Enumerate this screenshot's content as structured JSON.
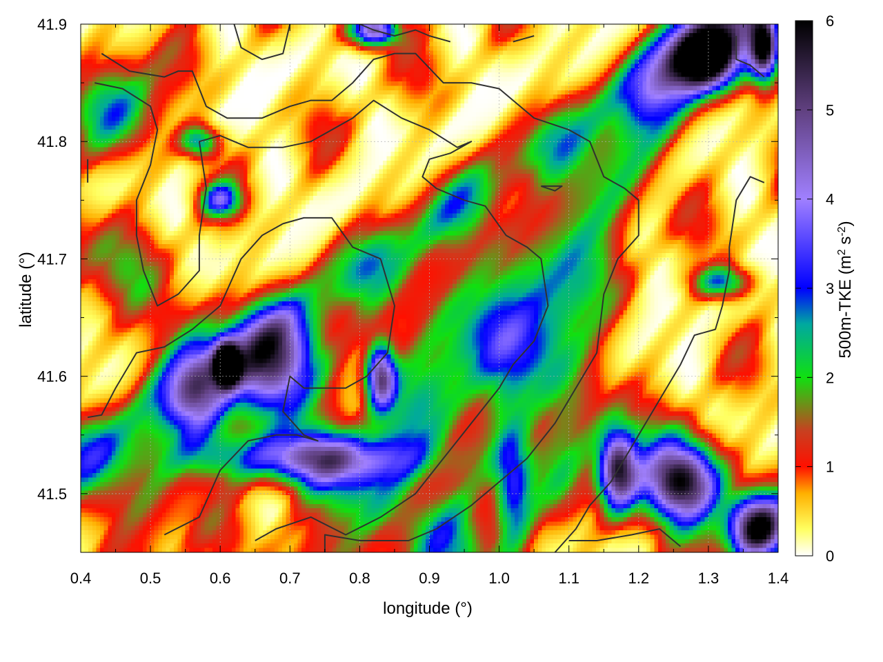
{
  "chart_data": {
    "type": "heatmap",
    "title": "",
    "xlabel": "longitude (°)",
    "ylabel": "latitude (°)",
    "xlim": [
      0.4,
      1.4
    ],
    "ylim": [
      41.45,
      41.9
    ],
    "x_ticks": [
      "0.4",
      "0.5",
      "0.6",
      "0.7",
      "0.8",
      "0.9",
      "1.0",
      "1.1",
      "1.2",
      "1.3",
      "1.4"
    ],
    "y_ticks": [
      "41.5",
      "41.6",
      "41.7",
      "41.8",
      "41.9"
    ],
    "grid": true,
    "colorbar": {
      "label_parts": [
        "500m-TKE (m",
        "2",
        " s",
        "-2",
        ")"
      ],
      "range": [
        0,
        6
      ],
      "ticks": [
        "0",
        "1",
        "2",
        "3",
        "4",
        "5",
        "6"
      ],
      "stops": [
        {
          "value": 0.0,
          "color": "#ffffff"
        },
        {
          "value": 0.3,
          "color": "#ffff60"
        },
        {
          "value": 0.7,
          "color": "#ffb000"
        },
        {
          "value": 1.0,
          "color": "#ff1000"
        },
        {
          "value": 1.4,
          "color": "#c84020"
        },
        {
          "value": 2.0,
          "color": "#10e010"
        },
        {
          "value": 2.6,
          "color": "#00a8a0"
        },
        {
          "value": 3.0,
          "color": "#0000ff"
        },
        {
          "value": 4.0,
          "color": "#a080ff"
        },
        {
          "value": 5.0,
          "color": "#604080"
        },
        {
          "value": 6.0,
          "color": "#000000"
        }
      ]
    },
    "hotspots": [
      {
        "lon": 0.68,
        "lat": 41.61,
        "amp": 3.8,
        "sx": 0.05,
        "sy": 0.03
      },
      {
        "lon": 0.61,
        "lat": 41.61,
        "amp": 5.5,
        "sx": 0.012,
        "sy": 0.012
      },
      {
        "lon": 0.83,
        "lat": 41.6,
        "amp": 4.2,
        "sx": 0.015,
        "sy": 0.02
      },
      {
        "lon": 0.72,
        "lat": 41.53,
        "amp": 3.0,
        "sx": 0.12,
        "sy": 0.015
      },
      {
        "lon": 0.57,
        "lat": 41.58,
        "amp": 2.6,
        "sx": 0.03,
        "sy": 0.03
      },
      {
        "lon": 1.02,
        "lat": 41.5,
        "amp": 2.8,
        "sx": 0.02,
        "sy": 0.04
      },
      {
        "lon": 1.26,
        "lat": 41.51,
        "amp": 6.0,
        "sx": 0.04,
        "sy": 0.025
      },
      {
        "lon": 1.17,
        "lat": 41.52,
        "amp": 5.0,
        "sx": 0.02,
        "sy": 0.025
      },
      {
        "lon": 1.37,
        "lat": 41.47,
        "amp": 6.0,
        "sx": 0.03,
        "sy": 0.02
      },
      {
        "lon": 1.3,
        "lat": 41.87,
        "amp": 5.5,
        "sx": 0.035,
        "sy": 0.02
      },
      {
        "lon": 1.38,
        "lat": 41.88,
        "amp": 5.5,
        "sx": 0.015,
        "sy": 0.02
      },
      {
        "lon": 0.82,
        "lat": 41.895,
        "amp": 4.5,
        "sx": 0.025,
        "sy": 0.01
      },
      {
        "lon": 0.57,
        "lat": 41.8,
        "amp": 2.5,
        "sx": 0.02,
        "sy": 0.01
      },
      {
        "lon": 0.6,
        "lat": 41.75,
        "amp": 2.5,
        "sx": 0.02,
        "sy": 0.01
      },
      {
        "lon": 0.46,
        "lat": 41.83,
        "amp": 2.2,
        "sx": 0.04,
        "sy": 0.03
      },
      {
        "lon": 1.1,
        "lat": 41.58,
        "amp": 1.5,
        "sx": 0.04,
        "sy": 0.06
      },
      {
        "lon": 0.95,
        "lat": 41.65,
        "amp": 1.3,
        "sx": 0.1,
        "sy": 0.05
      },
      {
        "lon": 1.32,
        "lat": 41.68,
        "amp": 2.5,
        "sx": 0.03,
        "sy": 0.01
      },
      {
        "lon": 0.48,
        "lat": 41.5,
        "amp": 1.3,
        "sx": 0.06,
        "sy": 0.04
      }
    ],
    "bands": [
      {
        "lon0": 0.75,
        "lat0": 41.45,
        "dlon": 0.55,
        "dlat": 0.45,
        "amp": 1.2,
        "width": 0.03
      },
      {
        "lon0": 0.9,
        "lat0": 41.45,
        "dlon": 0.4,
        "dlat": 0.45,
        "amp": 1.0,
        "width": 0.025
      },
      {
        "lon0": 1.02,
        "lat0": 41.78,
        "dlon": 0.3,
        "dlat": 0.12,
        "amp": 1.4,
        "width": 0.02
      },
      {
        "lon0": 0.42,
        "lat0": 41.7,
        "dlon": 0.3,
        "dlat": -0.15,
        "amp": 1.0,
        "width": 0.03
      }
    ],
    "contours": [
      [
        [
          0.41,
          41.565
        ],
        [
          0.43,
          41.567
        ],
        [
          0.45,
          41.59
        ],
        [
          0.48,
          41.62
        ],
        [
          0.52,
          41.625
        ],
        [
          0.56,
          41.64
        ],
        [
          0.6,
          41.66
        ],
        [
          0.63,
          41.7
        ],
        [
          0.66,
          41.72
        ],
        [
          0.69,
          41.73
        ],
        [
          0.72,
          41.735
        ],
        [
          0.76,
          41.735
        ],
        [
          0.79,
          41.71
        ],
        [
          0.83,
          41.7
        ],
        [
          0.85,
          41.66
        ],
        [
          0.84,
          41.62
        ],
        [
          0.81,
          41.6
        ],
        [
          0.78,
          41.59
        ],
        [
          0.72,
          41.59
        ],
        [
          0.7,
          41.6
        ],
        [
          0.69,
          41.57
        ],
        [
          0.72,
          41.55
        ],
        [
          0.74,
          41.545
        ],
        [
          0.71,
          41.55
        ],
        [
          0.68,
          41.55
        ],
        [
          0.64,
          41.545
        ],
        [
          0.6,
          41.52
        ],
        [
          0.57,
          41.48
        ],
        [
          0.52,
          41.465
        ]
      ],
      [
        [
          0.43,
          41.875
        ],
        [
          0.47,
          41.86
        ],
        [
          0.52,
          41.855
        ],
        [
          0.54,
          41.86
        ],
        [
          0.56,
          41.86
        ],
        [
          0.58,
          41.83
        ],
        [
          0.61,
          41.82
        ],
        [
          0.66,
          41.82
        ],
        [
          0.7,
          41.83
        ],
        [
          0.73,
          41.835
        ],
        [
          0.76,
          41.835
        ],
        [
          0.79,
          41.85
        ],
        [
          0.82,
          41.87
        ],
        [
          0.85,
          41.875
        ],
        [
          0.88,
          41.875
        ],
        [
          0.92,
          41.85
        ],
        [
          0.96,
          41.85
        ],
        [
          1.0,
          41.845
        ],
        [
          1.05,
          41.82
        ],
        [
          1.1,
          41.81
        ],
        [
          1.13,
          41.8
        ],
        [
          1.15,
          41.77
        ],
        [
          1.18,
          41.76
        ],
        [
          1.2,
          41.75
        ],
        [
          1.2,
          41.72
        ],
        [
          1.17,
          41.7
        ],
        [
          1.15,
          41.67
        ],
        [
          1.14,
          41.62
        ],
        [
          1.12,
          41.6
        ],
        [
          1.08,
          41.56
        ],
        [
          1.04,
          41.53
        ],
        [
          1.0,
          41.51
        ],
        [
          0.96,
          41.49
        ],
        [
          0.91,
          41.47
        ],
        [
          0.87,
          41.46
        ],
        [
          0.8,
          41.46
        ],
        [
          0.75,
          41.465
        ],
        [
          0.75,
          41.45
        ]
      ],
      [
        [
          0.42,
          41.85
        ],
        [
          0.46,
          41.845
        ],
        [
          0.5,
          41.83
        ],
        [
          0.51,
          41.81
        ],
        [
          0.5,
          41.78
        ],
        [
          0.48,
          41.75
        ],
        [
          0.48,
          41.72
        ],
        [
          0.49,
          41.69
        ],
        [
          0.5,
          41.675
        ],
        [
          0.51,
          41.66
        ],
        [
          0.54,
          41.67
        ],
        [
          0.57,
          41.69
        ],
        [
          0.57,
          41.72
        ],
        [
          0.58,
          41.76
        ],
        [
          0.57,
          41.8
        ],
        [
          0.6,
          41.805
        ],
        [
          0.64,
          41.795
        ],
        [
          0.69,
          41.795
        ],
        [
          0.73,
          41.8
        ],
        [
          0.76,
          41.81
        ],
        [
          0.79,
          41.82
        ],
        [
          0.82,
          41.835
        ],
        [
          0.86,
          41.82
        ],
        [
          0.9,
          41.81
        ],
        [
          0.94,
          41.795
        ],
        [
          0.96,
          41.8
        ],
        [
          0.93,
          41.79
        ],
        [
          0.9,
          41.785
        ],
        [
          0.89,
          41.77
        ],
        [
          0.91,
          41.76
        ],
        [
          0.95,
          41.75
        ],
        [
          0.98,
          41.745
        ],
        [
          1.01,
          41.72
        ],
        [
          1.04,
          41.71
        ],
        [
          1.06,
          41.7
        ],
        [
          1.07,
          41.66
        ],
        [
          1.05,
          41.63
        ],
        [
          1.02,
          41.61
        ],
        [
          1.0,
          41.59
        ],
        [
          0.96,
          41.56
        ],
        [
          0.92,
          41.53
        ],
        [
          0.88,
          41.5
        ],
        [
          0.83,
          41.48
        ],
        [
          0.78,
          41.465
        ],
        [
          0.73,
          41.48
        ],
        [
          0.68,
          41.47
        ],
        [
          0.65,
          41.46
        ]
      ],
      [
        [
          0.62,
          41.9
        ],
        [
          0.63,
          41.88
        ],
        [
          0.66,
          41.87
        ],
        [
          0.69,
          41.875
        ],
        [
          0.7,
          41.9
        ]
      ],
      [
        [
          1.1,
          41.46
        ],
        [
          1.14,
          41.46
        ],
        [
          1.19,
          41.465
        ],
        [
          1.23,
          41.47
        ],
        [
          1.26,
          41.455
        ]
      ],
      [
        [
          1.34,
          41.89
        ],
        [
          1.34,
          41.87
        ],
        [
          1.36,
          41.865
        ],
        [
          1.38,
          41.855
        ]
      ],
      [
        [
          1.38,
          41.765
        ],
        [
          1.36,
          41.77
        ],
        [
          1.34,
          41.75
        ],
        [
          1.33,
          41.71
        ],
        [
          1.33,
          41.69
        ],
        [
          1.32,
          41.66
        ],
        [
          1.31,
          41.64
        ],
        [
          1.28,
          41.635
        ],
        [
          1.26,
          41.61
        ],
        [
          1.24,
          41.59
        ],
        [
          1.22,
          41.57
        ],
        [
          1.2,
          41.55
        ],
        [
          1.18,
          41.53
        ],
        [
          1.16,
          41.51
        ],
        [
          1.13,
          41.49
        ],
        [
          1.11,
          41.47
        ],
        [
          1.08,
          41.45
        ]
      ],
      [
        [
          0.41,
          41.785
        ],
        [
          0.41,
          41.765
        ]
      ],
      [
        [
          1.06,
          41.762
        ],
        [
          1.08,
          41.758
        ],
        [
          1.09,
          41.762
        ],
        [
          1.06,
          41.762
        ]
      ],
      [
        [
          0.8,
          41.9
        ],
        [
          0.82,
          41.895
        ],
        [
          0.85,
          41.89
        ],
        [
          0.88,
          41.895
        ],
        [
          0.9,
          41.89
        ],
        [
          0.93,
          41.885
        ]
      ],
      [
        [
          1.02,
          41.885
        ],
        [
          1.05,
          41.89
        ]
      ]
    ]
  }
}
